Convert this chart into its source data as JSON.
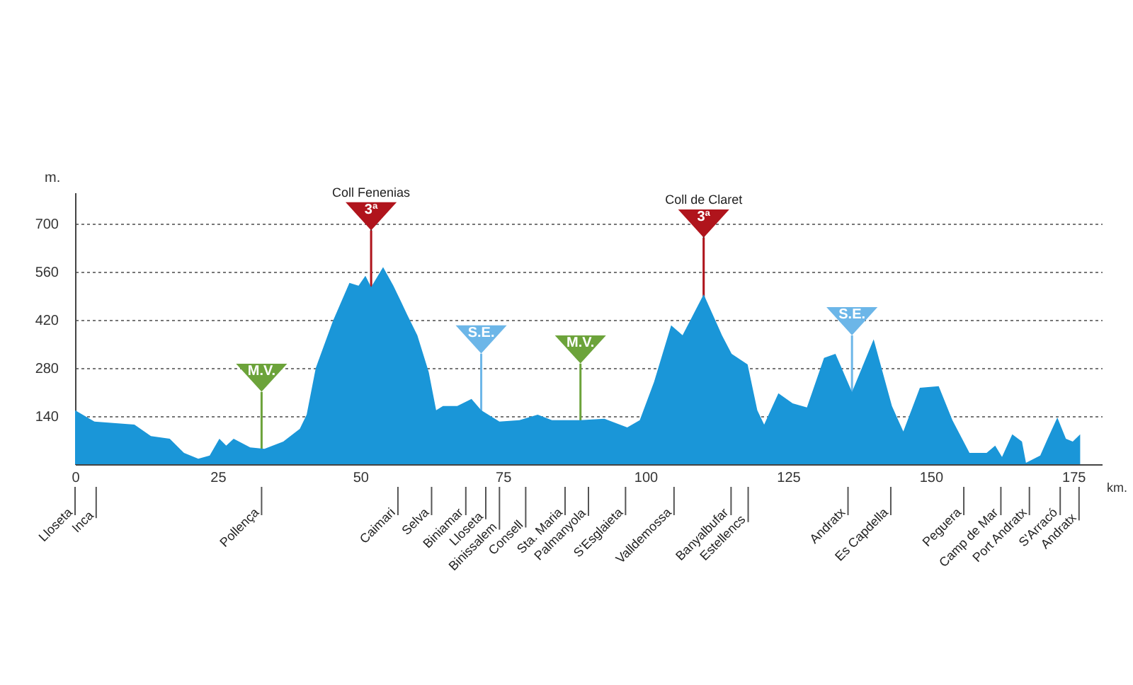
{
  "chart_data": {
    "type": "area",
    "xlabel": "km.",
    "ylabel": "m.",
    "x": [
      0,
      3.4,
      10.4,
      13.3,
      16.6,
      19.1,
      21.6,
      23.6,
      25.3,
      26.5,
      27.8,
      30.7,
      33.2,
      36.5,
      39.4,
      40.6,
      42.2,
      45.2,
      48.1,
      49.7,
      50.9,
      51.9,
      54,
      55.8,
      57.1,
      58.3,
      60,
      62,
      63.3,
      64.5,
      67,
      69.5,
      71.2,
      74.4,
      77.9,
      81.1,
      83.6,
      88.6,
      92.8,
      96.8,
      99,
      101.5,
      104.5,
      106.5,
      110.2,
      113.4,
      115.1,
      117.9,
      119.6,
      120.8,
      123.3,
      125.8,
      128.3,
      131.3,
      133.3,
      136.2,
      140,
      143.2,
      145.2,
      148.1,
      151.4,
      153.8,
      156.8,
      159.8,
      161.3,
      162.5,
      164.3,
      166,
      166.7,
      169.2,
      170.5,
      172.2,
      173.7,
      174.9,
      176.2
    ],
    "series": [
      {
        "color": "#1a96d8",
        "values": [
          157,
          124,
          115,
          82,
          74,
          33,
          16,
          25,
          74,
          54,
          74,
          49,
          45,
          66,
          103,
          144,
          280,
          416,
          527,
          519,
          548,
          515,
          573,
          519,
          474,
          432,
          375,
          268,
          157,
          169,
          169,
          190,
          157,
          124,
          128,
          144,
          128,
          128,
          132,
          107,
          128,
          239,
          404,
          375,
          494,
          375,
          321,
          290,
          157,
          115,
          206,
          177,
          165,
          309,
          321,
          210,
          363,
          169,
          95,
          222,
          227,
          128,
          33,
          33,
          54,
          21,
          87,
          66,
          4,
          25,
          74,
          136,
          74,
          66,
          87
        ]
      }
    ],
    "xlim": [
      0,
      180
    ],
    "xticks": [
      0,
      25,
      50,
      75,
      100,
      125,
      150,
      175
    ],
    "ylim": [
      0,
      790
    ],
    "yticks": [
      140,
      280,
      420,
      560,
      700
    ],
    "grid": "y",
    "ref_lines": [
      {
        "axis": "x",
        "value": 32.7,
        "label": "M.V.",
        "color": "#6ca33a"
      },
      {
        "axis": "x",
        "value": 51.9,
        "label": "Coll Fenenias",
        "color": "#b0141c"
      },
      {
        "axis": "x",
        "value": 71.2,
        "label": "S.E.",
        "color": "#6cb6e8"
      },
      {
        "axis": "x",
        "value": 88.6,
        "label": "M.V.",
        "color": "#6ca33a"
      },
      {
        "axis": "x",
        "value": 110.2,
        "label": "Coll de Claret",
        "color": "#b0141c"
      },
      {
        "axis": "x",
        "value": 136.2,
        "label": "S.E.",
        "color": "#6cb6e8"
      },
      {
        "axis": "x",
        "value": 0,
        "label": "Lloseta"
      },
      {
        "axis": "x",
        "value": 3.7,
        "label": "Inca"
      },
      {
        "axis": "x",
        "value": 32.7,
        "label": "Pollença"
      },
      {
        "axis": "x",
        "value": 56.6,
        "label": "Caimari"
      },
      {
        "axis": "x",
        "value": 62.5,
        "label": "Selva"
      },
      {
        "axis": "x",
        "value": 68.5,
        "label": "Biniamar"
      },
      {
        "axis": "x",
        "value": 72,
        "label": "Lloseta"
      },
      {
        "axis": "x",
        "value": 74.4,
        "label": "Binissalem"
      },
      {
        "axis": "x",
        "value": 79,
        "label": "Consell"
      },
      {
        "axis": "x",
        "value": 85.9,
        "label": "Sta. Maria"
      },
      {
        "axis": "x",
        "value": 90,
        "label": "Palmanyola"
      },
      {
        "axis": "x",
        "value": 96.5,
        "label": "S'Esglaieta"
      },
      {
        "axis": "x",
        "value": 105,
        "label": "Valldemossa"
      },
      {
        "axis": "x",
        "value": 115,
        "label": "Banyalbufar"
      },
      {
        "axis": "x",
        "value": 118,
        "label": "Estellencs"
      },
      {
        "axis": "x",
        "value": 135.5,
        "label": "Andratx"
      },
      {
        "axis": "x",
        "value": 143,
        "label": "Es Capdella"
      },
      {
        "axis": "x",
        "value": 155.8,
        "label": "Peguera"
      },
      {
        "axis": "x",
        "value": 162.3,
        "label": "Camp de Mar"
      },
      {
        "axis": "x",
        "value": 167.3,
        "label": "Port Andratx"
      },
      {
        "axis": "x",
        "value": 172.7,
        "label": "S'Arracó"
      },
      {
        "axis": "x",
        "value": 176,
        "label": "Andratx"
      }
    ],
    "annotations": [
      {
        "text": "3ª",
        "x": 51.9,
        "y": 515
      },
      {
        "text": "3ª",
        "x": 110.2,
        "y": 494
      }
    ]
  }
}
